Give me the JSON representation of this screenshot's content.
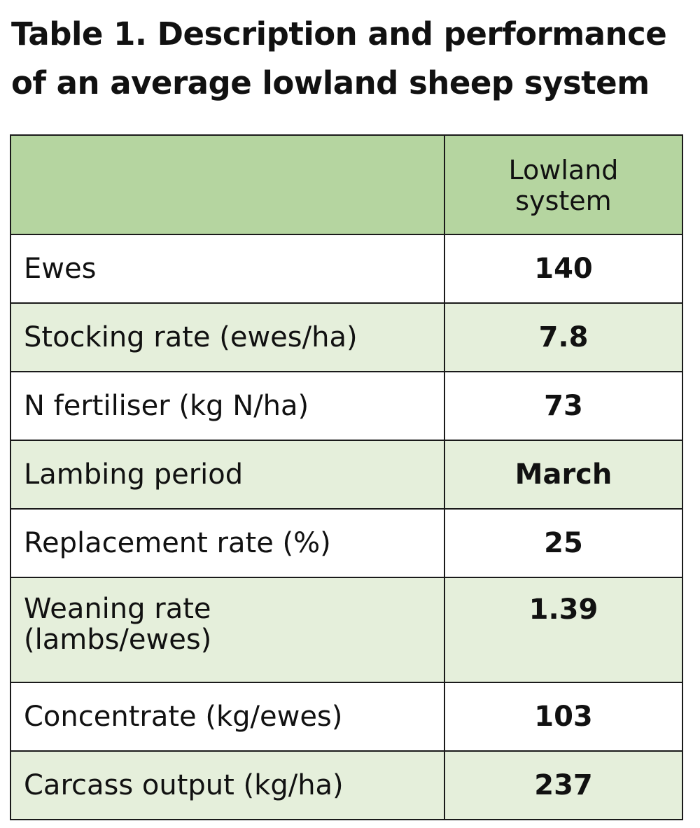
{
  "title": "Table 1. Description and performance of an average lowland sheep system",
  "table": {
    "header": {
      "label_column": "",
      "value_column": "Lowland system"
    },
    "rows": [
      {
        "label": "Ewes",
        "value": "140"
      },
      {
        "label": "Stocking rate (ewes/ha)",
        "value": "7.8"
      },
      {
        "label": "N fertiliser (kg N/ha)",
        "value": "73"
      },
      {
        "label": "Lambing period",
        "value": "March"
      },
      {
        "label": "Replacement rate (%)",
        "value": "25"
      },
      {
        "label": "Weaning rate (lambs/ewes)",
        "value": "1.39"
      },
      {
        "label": "Concentrate (kg/ewes)",
        "value": "103"
      },
      {
        "label": "Carcass output (kg/ha)",
        "value": "237"
      }
    ]
  },
  "colors": {
    "header_background": "#b5d5a0",
    "shaded_row_background": "#e5efdb",
    "plain_row_background": "#ffffff",
    "border": "#1a1a1a"
  }
}
